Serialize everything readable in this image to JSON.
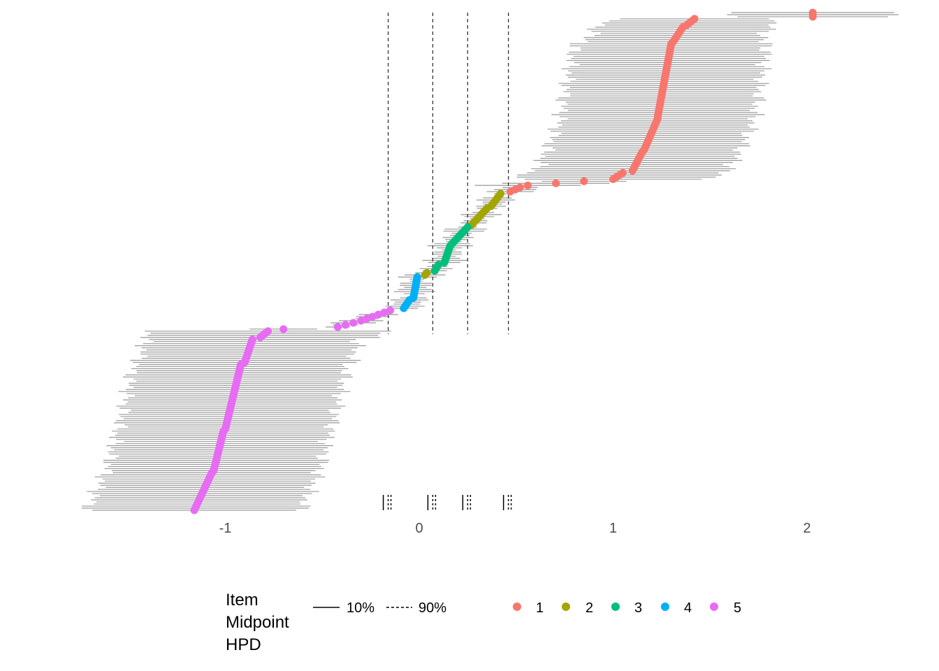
{
  "chart_data": {
    "type": "scatter",
    "description_of_series": "rows sorted by estimated position; each row has a point estimate and an interval",
    "x_ticks": [
      -1,
      0,
      1,
      2
    ],
    "xlim": [
      -1.75,
      2.4
    ],
    "grid": false,
    "legend_position": "bottom",
    "legend": {
      "title_lines": [
        "Item",
        "Midpoint",
        "HPD"
      ],
      "line_types": [
        {
          "label": "10%",
          "style": "solid"
        },
        {
          "label": "90%",
          "style": "dashed"
        }
      ],
      "categories": [
        {
          "label": "1",
          "color": "#F8766D"
        },
        {
          "label": "2",
          "color": "#A3A500"
        },
        {
          "label": "3",
          "color": "#00BF7D"
        },
        {
          "label": "4",
          "color": "#00B0F6"
        },
        {
          "label": "5",
          "color": "#E76BF3"
        }
      ]
    },
    "midpoints": [
      -0.16,
      0.07,
      0.25,
      0.46
    ],
    "interval_color": "#999999",
    "segments": [
      {
        "category": "1",
        "rows": [
          0,
          2
        ],
        "x_start": 2.03,
        "x_end": 2.03,
        "half_width": 0.4
      },
      {
        "category": "1",
        "rows": [
          3,
          6
        ],
        "x_start": 1.42,
        "x_end": 1.38,
        "half_width": 0.43
      },
      {
        "category": "1",
        "rows": [
          7,
          14
        ],
        "x_start": 1.36,
        "x_end": 1.31,
        "half_width": 0.45
      },
      {
        "category": "1",
        "rows": [
          15,
          50
        ],
        "x_start": 1.3,
        "x_end": 1.23,
        "half_width": 0.5
      },
      {
        "category": "1",
        "rows": [
          51,
          66
        ],
        "x_start": 1.23,
        "x_end": 1.16,
        "half_width": 0.5
      },
      {
        "category": "1",
        "rows": [
          67,
          76
        ],
        "x_start": 1.15,
        "x_end": 1.1,
        "half_width": 0.5
      },
      {
        "category": "1",
        "rows": [
          77,
          80
        ],
        "x_start": 1.05,
        "x_end": 1.0,
        "half_width": 0.5
      },
      {
        "category": "1",
        "rows": [
          81,
          83
        ],
        "x_start": 0.85,
        "x_end": 0.56,
        "half_width": 0.25
      },
      {
        "category": "1",
        "rows": [
          84,
          86
        ],
        "x_start": 0.52,
        "x_end": 0.47,
        "half_width": 0.1
      },
      {
        "category": "2",
        "rows": [
          87,
          93
        ],
        "x_start": 0.42,
        "x_end": 0.37,
        "half_width": 0.06
      },
      {
        "category": "2",
        "rows": [
          94,
          102
        ],
        "x_start": 0.35,
        "x_end": 0.27,
        "half_width": 0.06
      },
      {
        "category": "3",
        "rows": [
          103,
          111
        ],
        "x_start": 0.25,
        "x_end": 0.17,
        "half_width": 0.07
      },
      {
        "category": "3",
        "rows": [
          112,
          120
        ],
        "x_start": 0.16,
        "x_end": 0.13,
        "half_width": 0.07
      },
      {
        "category": "3",
        "rows": [
          121,
          124
        ],
        "x_start": 0.1,
        "x_end": 0.08,
        "half_width": 0.07
      },
      {
        "category": "2",
        "rows": [
          125,
          126
        ],
        "x_start": 0.04,
        "x_end": 0.03,
        "half_width": 0.07
      },
      {
        "category": "4",
        "rows": [
          127,
          137
        ],
        "x_start": -0.01,
        "x_end": -0.03,
        "half_width": 0.07
      },
      {
        "category": "4",
        "rows": [
          138,
          142
        ],
        "x_start": -0.05,
        "x_end": -0.08,
        "half_width": 0.07
      },
      {
        "category": "5",
        "rows": [
          143,
          147
        ],
        "x_start": -0.15,
        "x_end": -0.27,
        "half_width": 0.07
      },
      {
        "category": "5",
        "rows": [
          148,
          151
        ],
        "x_start": -0.3,
        "x_end": -0.42,
        "half_width": 0.1
      },
      {
        "category": "5",
        "rows": [
          152,
          152
        ],
        "x_start": -0.7,
        "x_end": -0.7,
        "half_width": 0.15
      },
      {
        "category": "5",
        "rows": [
          153,
          156
        ],
        "x_start": -0.78,
        "x_end": -0.82,
        "half_width": 0.6
      },
      {
        "category": "5",
        "rows": [
          157,
          168
        ],
        "x_start": -0.86,
        "x_end": -0.9,
        "half_width": 0.55
      },
      {
        "category": "5",
        "rows": [
          169,
          200
        ],
        "x_start": -0.92,
        "x_end": -1.0,
        "half_width": 0.55
      },
      {
        "category": "5",
        "rows": [
          201,
          220
        ],
        "x_start": -1.01,
        "x_end": -1.06,
        "half_width": 0.55
      },
      {
        "category": "5",
        "rows": [
          221,
          239
        ],
        "x_start": -1.07,
        "x_end": -1.16,
        "half_width": 0.55
      }
    ]
  }
}
